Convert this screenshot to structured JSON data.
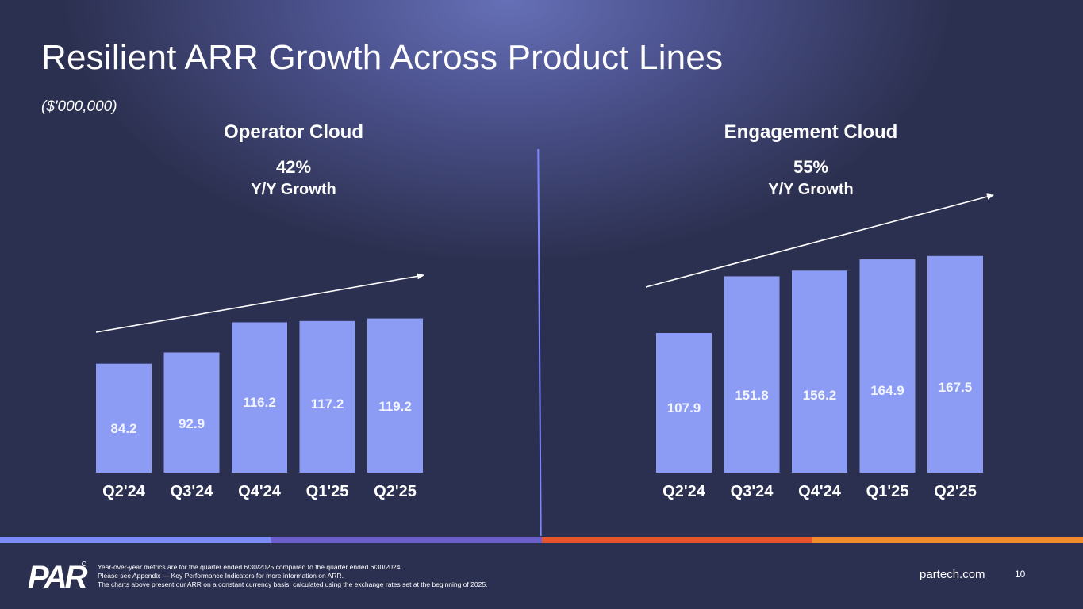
{
  "slide": {
    "title": "Resilient ARR Growth Across Product Lines",
    "units": "($'000,000)",
    "footnotes": [
      "Year-over-year metrics are for the quarter ended 6/30/2025 compared to the quarter ended 6/30/2024.",
      "Please see Appendix — Key Performance Indicators for more information on ARR.",
      "The charts above present our ARR on a constant currency basis, calculated using the exchange rates set at the beginning of 2025."
    ],
    "website": "partech.com",
    "page_number": "10",
    "logo_text": "PAR"
  },
  "colors": {
    "bar": "#8c9cf4",
    "bar_label": "#f2f4ff",
    "axis_label": "#ffffff",
    "trend_arrow": "#ffffff",
    "stripe": [
      "#7b8cf6",
      "#6b5fce",
      "#e8542e",
      "#f08c2c"
    ]
  },
  "chart_data": [
    {
      "type": "bar",
      "title": "Operator Cloud",
      "growth_value": "42%",
      "growth_label": "Y/Y Growth",
      "categories": [
        "Q2'24",
        "Q3'24",
        "Q4'24",
        "Q1'25",
        "Q2'25"
      ],
      "values": [
        84.2,
        92.9,
        116.2,
        117.2,
        119.2
      ],
      "value_labels": [
        "84.2",
        "92.9",
        "116.2",
        "117.2",
        "119.2"
      ],
      "ylim": [
        0,
        168
      ],
      "trend_arrow": true
    },
    {
      "type": "bar",
      "title": "Engagement Cloud",
      "growth_value": "55%",
      "growth_label": "Y/Y Growth",
      "categories": [
        "Q2'24",
        "Q3'24",
        "Q4'24",
        "Q1'25",
        "Q2'25"
      ],
      "values": [
        107.9,
        151.8,
        156.2,
        164.9,
        167.5
      ],
      "value_labels": [
        "107.9",
        "151.8",
        "156.2",
        "164.9",
        "167.5"
      ],
      "ylim": [
        0,
        168
      ],
      "trend_arrow": true
    }
  ]
}
